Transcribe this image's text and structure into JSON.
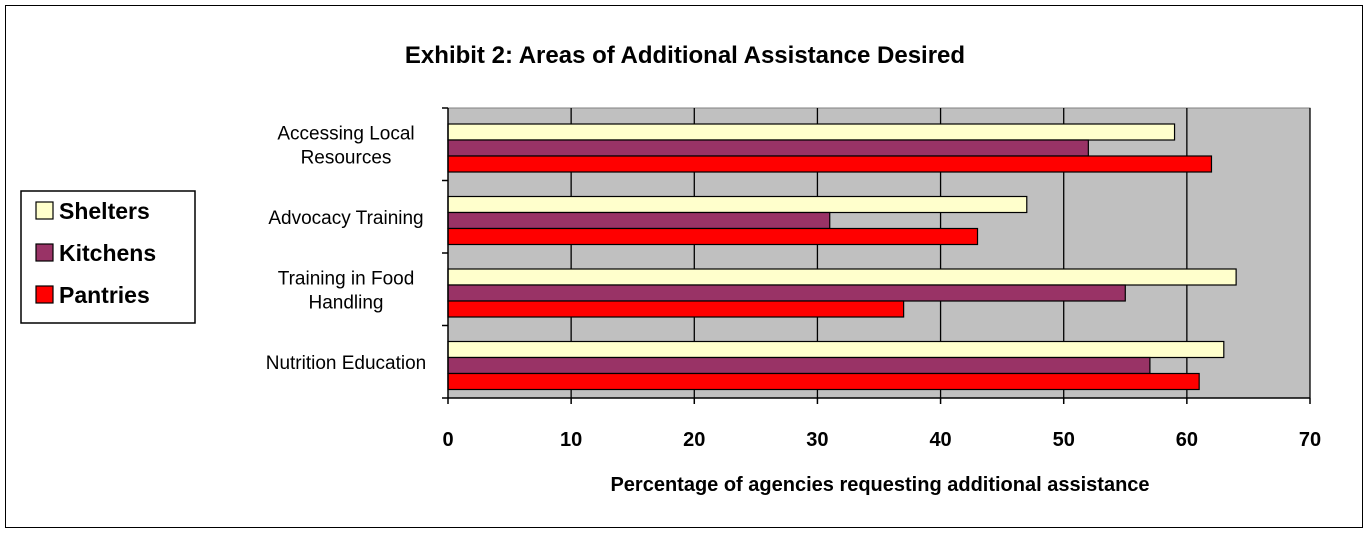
{
  "chart_data": {
    "type": "bar",
    "orientation": "horizontal",
    "title": "Exhibit 2:  Areas of Additional Assistance Desired",
    "xlabel": "Percentage of agencies requesting additional assistance",
    "ylabel": "",
    "xlim": [
      0,
      70
    ],
    "xticks": [
      0,
      10,
      20,
      30,
      40,
      50,
      60,
      70
    ],
    "grid": true,
    "legend_position": "left",
    "categories": [
      [
        "Accessing Local",
        "Resources"
      ],
      [
        "Advocacy Training"
      ],
      [
        "Training in Food",
        "Handling"
      ],
      [
        "Nutrition Education"
      ]
    ],
    "series": [
      {
        "name": "Shelters",
        "color": "#FFFFCC",
        "values": [
          59,
          47,
          64,
          63
        ]
      },
      {
        "name": "Kitchens",
        "color": "#993366",
        "values": [
          52,
          31,
          55,
          57
        ]
      },
      {
        "name": "Pantries",
        "color": "#FF0000",
        "values": [
          62,
          43,
          37,
          61
        ]
      }
    ],
    "plot_background": "#C0C0C0"
  }
}
